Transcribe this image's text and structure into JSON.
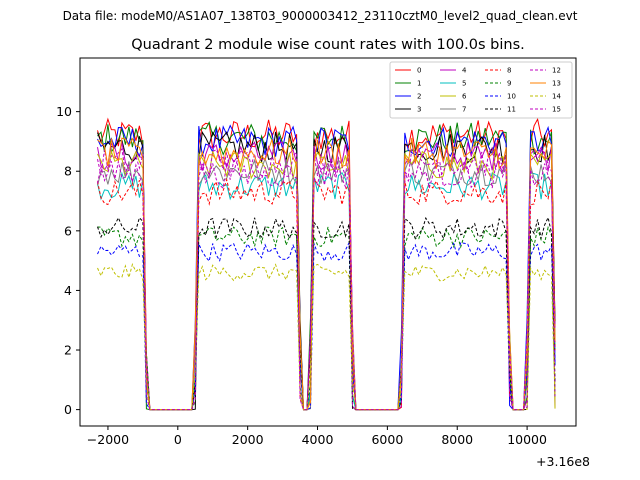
{
  "chart_data": {
    "type": "line",
    "suptitle": "Data file: modeM0/AS1A07_138T03_9000003412_23110cztM0_level2_quad_clean.evt",
    "title": "Quadrant 2 module wise count rates with 100.0s bins.",
    "xlabel": "",
    "ylabel": "",
    "x_offset_label": "+3.16e8",
    "xlim": [
      -2800,
      11400
    ],
    "ylim": [
      -0.55,
      11.8
    ],
    "x_ticks": [
      -2000,
      0,
      2000,
      4000,
      6000,
      8000,
      10000
    ],
    "x_tick_labels": [
      "−2000",
      "0",
      "2000",
      "4000",
      "6000",
      "8000",
      "10000"
    ],
    "y_ticks": [
      0,
      2,
      4,
      6,
      8,
      10
    ],
    "y_tick_labels": [
      "0",
      "2",
      "4",
      "6",
      "8",
      "10"
    ],
    "legend_position": "top-right",
    "grid": false,
    "bin_size_s": 100,
    "x_start": -2300,
    "on_intervals": [
      [
        -2300,
        -1000
      ],
      [
        600,
        3400
      ],
      [
        3900,
        4900
      ],
      [
        6500,
        9400
      ],
      [
        10100,
        10700
      ]
    ],
    "series": [
      {
        "name": "0",
        "color": "#ff0000",
        "dash": "solid",
        "level": 9.2
      },
      {
        "name": "1",
        "color": "#008000",
        "dash": "solid",
        "level": 9.1
      },
      {
        "name": "2",
        "color": "#0000ff",
        "dash": "solid",
        "level": 9.0
      },
      {
        "name": "3",
        "color": "#000000",
        "dash": "solid",
        "level": 8.8
      },
      {
        "name": "4",
        "color": "#bf00bf",
        "dash": "solid",
        "level": 8.5
      },
      {
        "name": "5",
        "color": "#00bfbf",
        "dash": "solid",
        "level": 7.5
      },
      {
        "name": "6",
        "color": "#bfbf00",
        "dash": "solid",
        "level": 8.2
      },
      {
        "name": "7",
        "color": "#808080",
        "dash": "solid",
        "level": 8.0
      },
      {
        "name": "8",
        "color": "#ff0000",
        "dash": "dashed",
        "level": 7.3
      },
      {
        "name": "9",
        "color": "#008000",
        "dash": "dashed",
        "level": 5.8
      },
      {
        "name": "10",
        "color": "#0000ff",
        "dash": "dashed",
        "level": 5.3
      },
      {
        "name": "11",
        "color": "#000000",
        "dash": "dashed",
        "level": 6.1
      },
      {
        "name": "12",
        "color": "#bf00bf",
        "dash": "dashed",
        "level": 8.3
      },
      {
        "name": "13",
        "color": "#ff8000",
        "dash": "solid",
        "level": 8.6
      },
      {
        "name": "14",
        "color": "#bfbf00",
        "dash": "dashed",
        "level": 4.6
      },
      {
        "name": "15",
        "color": "#bf00bf",
        "dash": "dashed",
        "level": 7.9
      }
    ]
  }
}
